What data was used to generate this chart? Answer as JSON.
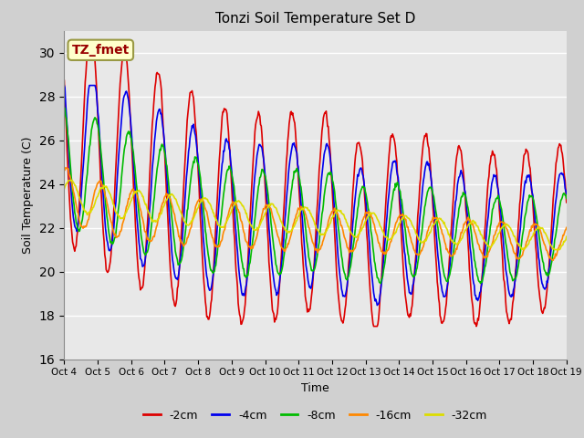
{
  "title": "Tonzi Soil Temperature Set D",
  "xlabel": "Time",
  "ylabel": "Soil Temperature (C)",
  "ylim": [
    16,
    31
  ],
  "yticks": [
    16,
    18,
    20,
    22,
    24,
    26,
    28,
    30
  ],
  "plot_bg_color": "#e8e8e8",
  "fig_bg_color": "#d0d0d0",
  "annotation_text": "TZ_fmet",
  "annotation_bg": "#ffffcc",
  "annotation_border": "#999944",
  "annotation_text_color": "#990000",
  "series_colors": [
    "#dd0000",
    "#0000ee",
    "#00bb00",
    "#ff8800",
    "#dddd00"
  ],
  "series_labels": [
    "-2cm",
    "-4cm",
    "-8cm",
    "-16cm",
    "-32cm"
  ],
  "grid_color": "#ffffff",
  "xtick_labels": [
    "Oct 4",
    "Oct 5",
    "Oct 6",
    "Oct 7",
    "Oct 8",
    "Oct 9",
    "Oct 10",
    "Oct 11",
    "Oct 12",
    "Oct 13",
    "Oct 14",
    "Oct 15",
    "Oct 16",
    "Oct 17",
    "Oct 18",
    "Oct 19"
  ]
}
